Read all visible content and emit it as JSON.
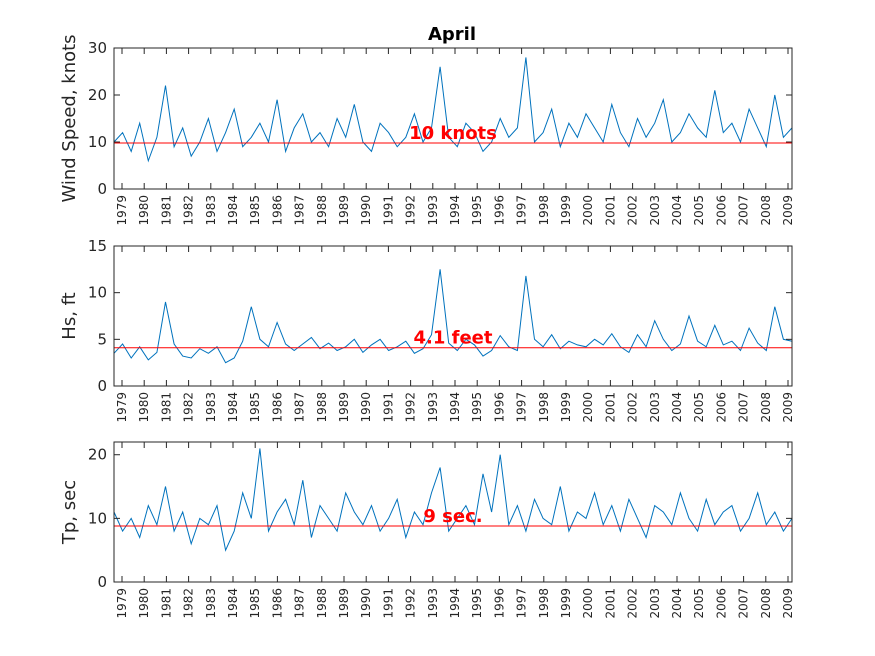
{
  "title": "April",
  "colors": {
    "series": "#0072BD",
    "reference": "#FF0000",
    "axis": "#262626"
  },
  "chart_data": [
    {
      "type": "line",
      "ylabel": "Wind Speed, knots",
      "ylim": [
        0,
        30
      ],
      "yticks": [
        0,
        10,
        20,
        30
      ],
      "xtick_labels": [
        "1979",
        "1980",
        "1981",
        "1982",
        "1983",
        "1984",
        "1985",
        "1986",
        "1987",
        "1988",
        "1989",
        "1990",
        "1991",
        "1992",
        "1993",
        "1994",
        "1995",
        "1996",
        "1997",
        "1998",
        "1999",
        "2000",
        "2001",
        "2002",
        "2003",
        "2004",
        "2005",
        "2006",
        "2007",
        "2008",
        "2009"
      ],
      "reference": {
        "value": 9.8,
        "label": "10 knots"
      },
      "series": [
        {
          "values": [
            10,
            12,
            8,
            14,
            6,
            11,
            22,
            9,
            13,
            7,
            10,
            15,
            8,
            12,
            17,
            9,
            11,
            14,
            10,
            19,
            8,
            13,
            16,
            10,
            12,
            9,
            15,
            11,
            18,
            10,
            8,
            14,
            12,
            9,
            11,
            16,
            10,
            13,
            26,
            11,
            9,
            14,
            12,
            8,
            10,
            15,
            11,
            13,
            28,
            10,
            12,
            17,
            9,
            14,
            11,
            16,
            13,
            10,
            18,
            12,
            9,
            15,
            11,
            14,
            19,
            10,
            12,
            16,
            13,
            11,
            21,
            12,
            14,
            10,
            17,
            13,
            9,
            20,
            11,
            13
          ]
        }
      ]
    },
    {
      "type": "line",
      "ylabel": "Hs, ft",
      "ylim": [
        0,
        15
      ],
      "yticks": [
        0,
        5,
        10,
        15
      ],
      "xtick_labels": [
        "1979",
        "1980",
        "1981",
        "1982",
        "1983",
        "1984",
        "1985",
        "1986",
        "1987",
        "1988",
        "1989",
        "1990",
        "1991",
        "1992",
        "1993",
        "1994",
        "1995",
        "1996",
        "1997",
        "1998",
        "1999",
        "2000",
        "2001",
        "2002",
        "2003",
        "2004",
        "2005",
        "2006",
        "2007",
        "2008",
        "2009"
      ],
      "reference": {
        "value": 4.1,
        "label": "4.1 feet"
      },
      "series": [
        {
          "values": [
            3.5,
            4.5,
            3.0,
            4.2,
            2.8,
            3.6,
            9.0,
            4.5,
            3.2,
            3.0,
            4.0,
            3.5,
            4.2,
            2.5,
            3.0,
            4.8,
            8.5,
            5.0,
            4.2,
            6.8,
            4.5,
            3.8,
            4.5,
            5.2,
            4.0,
            4.6,
            3.8,
            4.2,
            5.0,
            3.6,
            4.4,
            5.0,
            3.8,
            4.2,
            4.8,
            3.5,
            4.0,
            5.5,
            12.5,
            4.6,
            3.8,
            5.0,
            4.4,
            3.2,
            3.8,
            5.4,
            4.2,
            3.8,
            11.8,
            5.0,
            4.2,
            5.5,
            4.0,
            4.8,
            4.4,
            4.2,
            5.0,
            4.4,
            5.6,
            4.2,
            3.6,
            5.5,
            4.2,
            7.0,
            5.0,
            3.8,
            4.5,
            7.5,
            4.8,
            4.2,
            6.5,
            4.4,
            4.8,
            3.8,
            6.2,
            4.6,
            3.8,
            8.5,
            5.0,
            4.8
          ]
        }
      ]
    },
    {
      "type": "line",
      "ylabel": "Tp, sec",
      "ylim": [
        0,
        22
      ],
      "yticks": [
        0,
        10,
        20
      ],
      "xtick_labels": [
        "1979",
        "1980",
        "1981",
        "1982",
        "1983",
        "1984",
        "1985",
        "1986",
        "1987",
        "1988",
        "1989",
        "1990",
        "1991",
        "1992",
        "1993",
        "1994",
        "1995",
        "1996",
        "1997",
        "1998",
        "1999",
        "2000",
        "2001",
        "2002",
        "2003",
        "2004",
        "2005",
        "2006",
        "2007",
        "2008",
        "2009"
      ],
      "reference": {
        "value": 8.8,
        "label": "9 sec."
      },
      "series": [
        {
          "values": [
            11,
            8,
            10,
            7,
            12,
            9,
            15,
            8,
            11,
            6,
            10,
            9,
            12,
            5,
            8,
            14,
            10,
            21,
            8,
            11,
            13,
            9,
            16,
            7,
            12,
            10,
            8,
            14,
            11,
            9,
            12,
            8,
            10,
            13,
            7,
            11,
            9,
            14,
            18,
            8,
            10,
            12,
            9,
            17,
            11,
            20,
            9,
            12,
            8,
            13,
            10,
            9,
            15,
            8,
            11,
            10,
            14,
            9,
            12,
            8,
            13,
            10,
            7,
            12,
            11,
            9,
            14,
            10,
            8,
            13,
            9,
            11,
            12,
            8,
            10,
            14,
            9,
            11,
            8,
            10
          ]
        }
      ]
    }
  ]
}
